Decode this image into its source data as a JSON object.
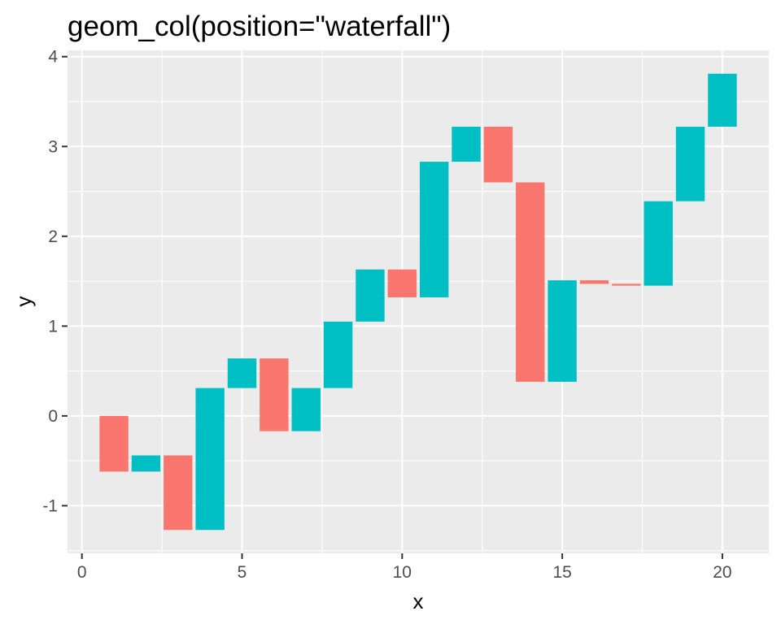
{
  "chart_data": {
    "type": "bar",
    "subtype": "waterfall",
    "title": "geom_col(position=\"waterfall\")",
    "xlabel": "x",
    "ylabel": "y",
    "xlim": [
      -0.45,
      21.45
    ],
    "ylim": [
      -1.53,
      4.07
    ],
    "xticks": [
      0,
      5,
      10,
      15,
      20
    ],
    "yticks": [
      -1,
      0,
      1,
      2,
      3,
      4
    ],
    "xtick_labels": [
      "0",
      "5",
      "10",
      "15",
      "20"
    ],
    "ytick_labels": [
      "-1",
      "0",
      "1",
      "2",
      "3",
      "4"
    ],
    "bar_width": 0.9,
    "grid": true,
    "legend": "none",
    "colors": {
      "panel": "#EBEBEB",
      "grid": "#FFFFFF",
      "decrease": "#F8766D",
      "increase": "#00BFC4",
      "tick": "#333333"
    },
    "bars": [
      {
        "x": 1,
        "start": 0.0,
        "end": -0.62
      },
      {
        "x": 2,
        "start": -0.62,
        "end": -0.44
      },
      {
        "x": 3,
        "start": -0.44,
        "end": -1.27
      },
      {
        "x": 4,
        "start": -1.27,
        "end": 0.31
      },
      {
        "x": 5,
        "start": 0.31,
        "end": 0.64
      },
      {
        "x": 6,
        "start": 0.64,
        "end": -0.17
      },
      {
        "x": 7,
        "start": -0.17,
        "end": 0.31
      },
      {
        "x": 8,
        "start": 0.31,
        "end": 1.05
      },
      {
        "x": 9,
        "start": 1.05,
        "end": 1.63
      },
      {
        "x": 10,
        "start": 1.63,
        "end": 1.32
      },
      {
        "x": 11,
        "start": 1.32,
        "end": 2.83
      },
      {
        "x": 12,
        "start": 2.83,
        "end": 3.22
      },
      {
        "x": 13,
        "start": 3.22,
        "end": 2.6
      },
      {
        "x": 14,
        "start": 2.6,
        "end": 0.38
      },
      {
        "x": 15,
        "start": 0.38,
        "end": 1.51
      },
      {
        "x": 16,
        "start": 1.51,
        "end": 1.47
      },
      {
        "x": 17,
        "start": 1.47,
        "end": 1.45
      },
      {
        "x": 18,
        "start": 1.45,
        "end": 2.39
      },
      {
        "x": 19,
        "start": 2.39,
        "end": 3.22
      },
      {
        "x": 20,
        "start": 3.22,
        "end": 3.81
      }
    ]
  }
}
